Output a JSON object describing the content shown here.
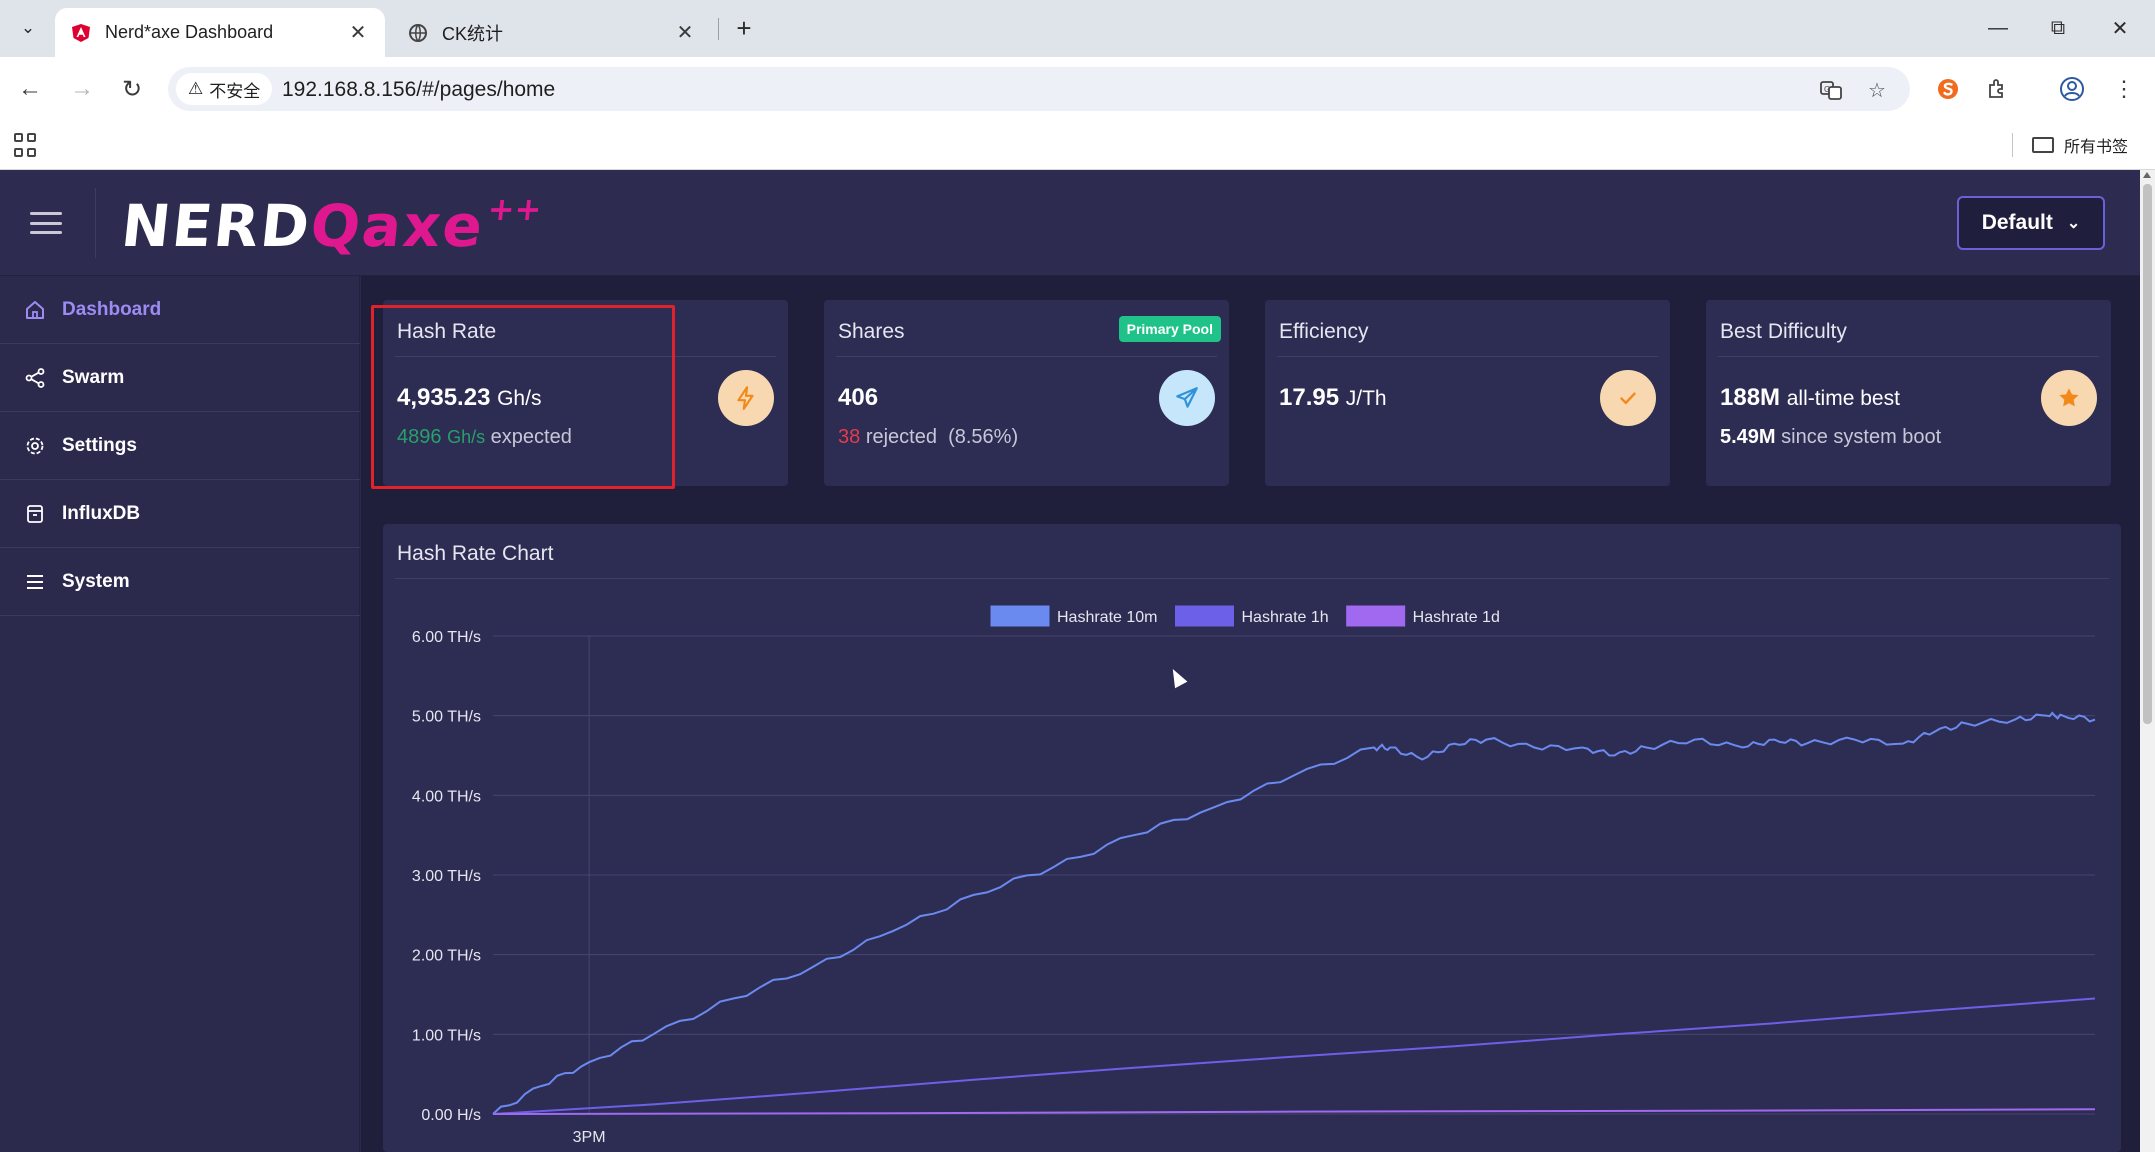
{
  "browser": {
    "tabs": [
      {
        "title": "Nerd*axe Dashboard",
        "active": true
      },
      {
        "title": "CK统计",
        "active": false
      }
    ],
    "security_label": "不安全",
    "url": "192.168.8.156/#/pages/home",
    "bookmarks_all": "所有书签"
  },
  "header": {
    "logo_part1": "NERD",
    "logo_part2": "Qaxe",
    "logo_part3": "++",
    "preset_label": "Default"
  },
  "sidebar": {
    "items": [
      {
        "label": "Dashboard",
        "icon": "home-icon",
        "active": true
      },
      {
        "label": "Swarm",
        "icon": "share-icon",
        "active": false
      },
      {
        "label": "Settings",
        "icon": "gear-icon",
        "active": false
      },
      {
        "label": "InfluxDB",
        "icon": "database-icon",
        "active": false
      },
      {
        "label": "System",
        "icon": "list-icon",
        "active": false
      }
    ]
  },
  "cards": {
    "hashrate": {
      "title": "Hash Rate",
      "value": "4,935.23",
      "unit": "Gh/s",
      "expected_value": "4896",
      "expected_unit": "Gh/s",
      "expected_label": "expected",
      "icon": "bolt-icon"
    },
    "shares": {
      "title": "Shares",
      "badge": "Primary Pool",
      "value": "406",
      "rejected_count": "38",
      "rejected_label": "rejected",
      "rejected_pct": "(8.56%)",
      "icon": "send-icon"
    },
    "efficiency": {
      "title": "Efficiency",
      "value": "17.95",
      "unit": "J/Th",
      "icon": "check-icon"
    },
    "best_difficulty": {
      "title": "Best Difficulty",
      "value": "188M",
      "value_label": "all-time best",
      "since_boot": "5.49M",
      "since_boot_label": "since system boot",
      "icon": "star-icon"
    }
  },
  "chart_data": {
    "type": "line",
    "title": "Hash Rate Chart",
    "y_unit": "TH/s",
    "yticks": [
      "6.00 TH/s",
      "5.00 TH/s",
      "4.00 TH/s",
      "3.00 TH/s",
      "2.00 TH/s",
      "1.00 TH/s",
      "0.00 H/s"
    ],
    "ylim": [
      0,
      6
    ],
    "xticks": [
      "3PM"
    ],
    "xlim": [
      0,
      100
    ],
    "xtick_positions": [
      6
    ],
    "grid": true,
    "legend_position": "top-center",
    "series": [
      {
        "name": "Hashrate 10m",
        "color": "#6b8af0",
        "x": [
          0,
          3,
          6,
          10,
          15,
          20,
          25,
          30,
          35,
          40,
          45,
          50,
          55,
          56,
          58,
          60,
          62,
          65,
          68,
          70,
          72,
          75,
          78,
          80,
          82,
          85,
          88,
          90,
          92,
          95,
          97,
          98,
          100
        ],
        "values": [
          0,
          0.35,
          0.65,
          1.0,
          1.45,
          1.85,
          2.3,
          2.75,
          3.1,
          3.5,
          3.85,
          4.25,
          4.6,
          4.6,
          4.45,
          4.65,
          4.7,
          4.6,
          4.6,
          4.5,
          4.6,
          4.7,
          4.6,
          4.7,
          4.65,
          4.7,
          4.65,
          4.8,
          4.9,
          4.95,
          5.0,
          5.0,
          4.95
        ]
      },
      {
        "name": "Hashrate 1h",
        "color": "#6c60e8",
        "x": [
          0,
          10,
          20,
          30,
          40,
          50,
          60,
          70,
          80,
          90,
          100
        ],
        "values": [
          0,
          0.12,
          0.27,
          0.43,
          0.58,
          0.72,
          0.85,
          1.0,
          1.14,
          1.3,
          1.45
        ]
      },
      {
        "name": "Hashrate 1d",
        "color": "#a169f0",
        "x": [
          0,
          25,
          50,
          75,
          100
        ],
        "values": [
          0,
          0.01,
          0.03,
          0.04,
          0.06
        ]
      }
    ]
  }
}
